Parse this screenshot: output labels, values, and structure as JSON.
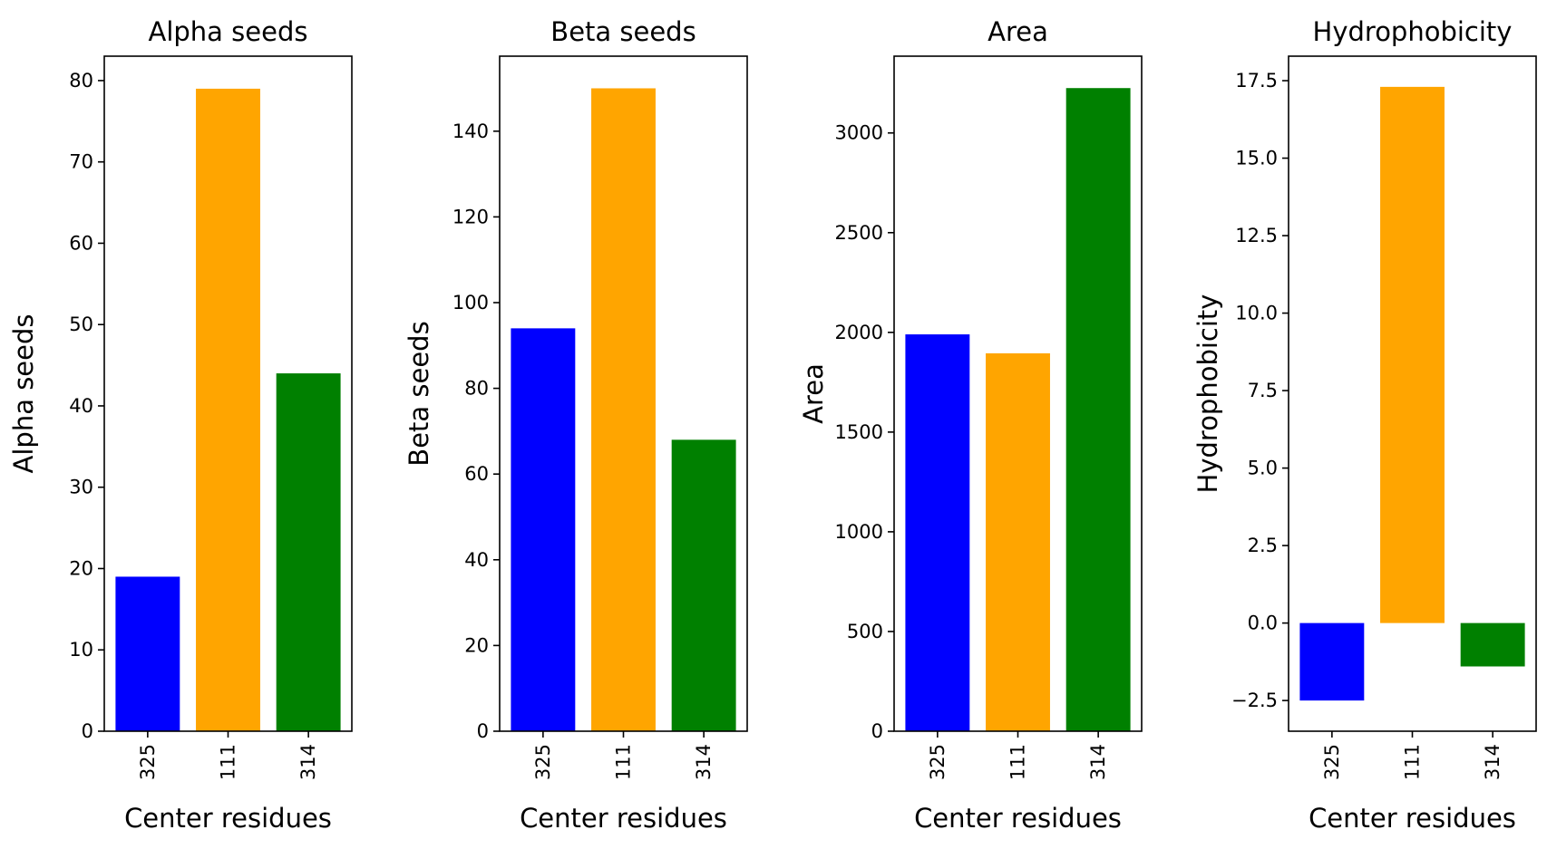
{
  "chart_data": [
    {
      "type": "bar",
      "title": "Alpha seeds",
      "xlabel": "Center residues",
      "ylabel": "Alpha seeds",
      "categories": [
        "325",
        "111",
        "314"
      ],
      "values": [
        19,
        79,
        44
      ],
      "colors": [
        "#0000ff",
        "#ffa500",
        "#008000"
      ],
      "ylim": [
        0,
        83
      ],
      "yticks": [
        0,
        10,
        20,
        30,
        40,
        50,
        60,
        70,
        80
      ],
      "ytick_labels": [
        "0",
        "10",
        "20",
        "30",
        "40",
        "50",
        "60",
        "70",
        "80"
      ],
      "grid": false,
      "legend": "none"
    },
    {
      "type": "bar",
      "title": "Beta seeds",
      "xlabel": "Center residues",
      "ylabel": "Beta seeds",
      "categories": [
        "325",
        "111",
        "314"
      ],
      "values": [
        94,
        150,
        68
      ],
      "colors": [
        "#0000ff",
        "#ffa500",
        "#008000"
      ],
      "ylim": [
        0,
        157.5
      ],
      "yticks": [
        0,
        20,
        40,
        60,
        80,
        100,
        120,
        140
      ],
      "ytick_labels": [
        "0",
        "20",
        "40",
        "60",
        "80",
        "100",
        "120",
        "140"
      ],
      "grid": false,
      "legend": "none"
    },
    {
      "type": "bar",
      "title": "Area",
      "xlabel": "Center residues",
      "ylabel": "Area",
      "categories": [
        "325",
        "111",
        "314"
      ],
      "values": [
        1990,
        1895,
        3225
      ],
      "colors": [
        "#0000ff",
        "#ffa500",
        "#008000"
      ],
      "ylim": [
        0,
        3385
      ],
      "yticks": [
        0,
        500,
        1000,
        1500,
        2000,
        2500,
        3000
      ],
      "ytick_labels": [
        "0",
        "500",
        "1000",
        "1500",
        "2000",
        "2500",
        "3000"
      ],
      "grid": false,
      "legend": "none"
    },
    {
      "type": "bar",
      "title": "Hydrophobicity",
      "xlabel": "Center residues",
      "ylabel": "Hydrophobicity",
      "categories": [
        "325",
        "111",
        "314"
      ],
      "values": [
        -2.5,
        17.3,
        -1.4
      ],
      "colors": [
        "#0000ff",
        "#ffa500",
        "#008000"
      ],
      "ylim": [
        -3.49,
        18.29
      ],
      "yticks": [
        -2.5,
        0.0,
        2.5,
        5.0,
        7.5,
        10.0,
        12.5,
        15.0,
        17.5
      ],
      "ytick_labels": [
        "−2.5",
        "0.0",
        "2.5",
        "5.0",
        "7.5",
        "10.0",
        "12.5",
        "15.0",
        "17.5"
      ],
      "grid": false,
      "legend": "none"
    }
  ]
}
